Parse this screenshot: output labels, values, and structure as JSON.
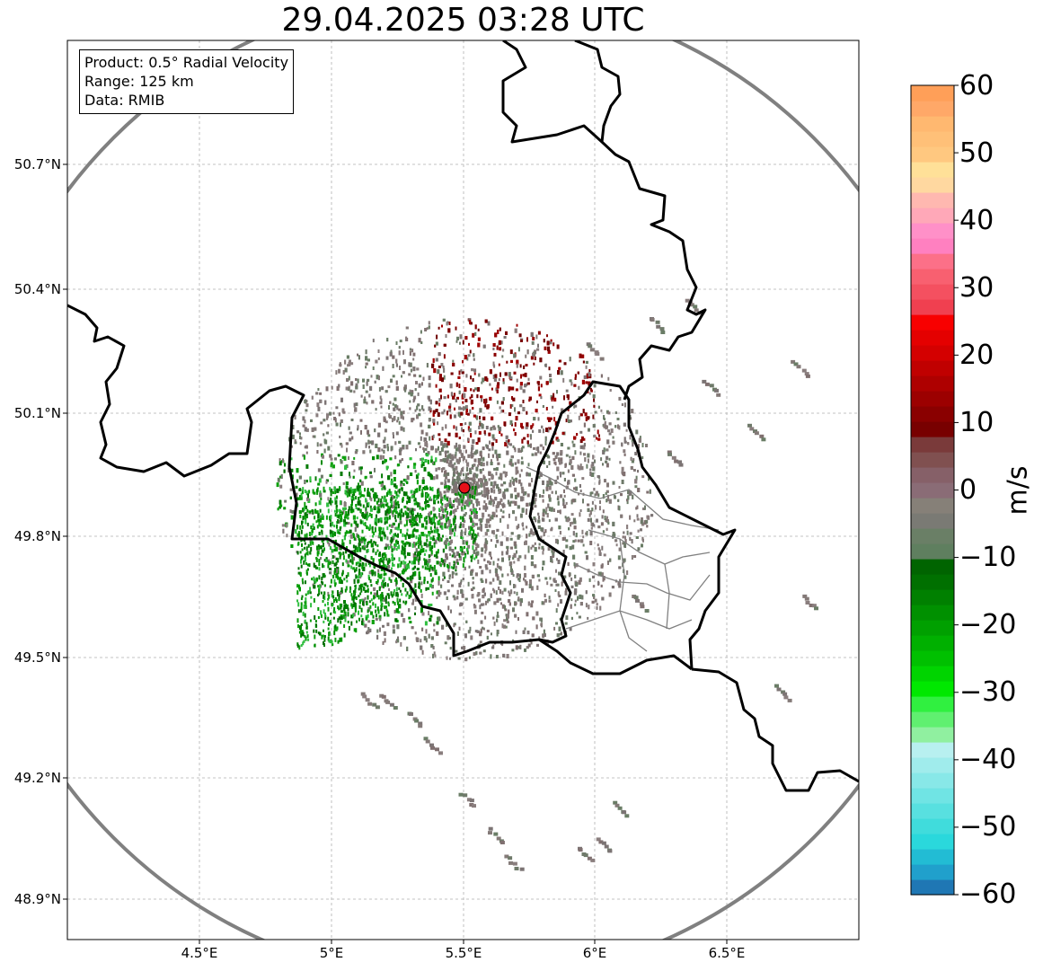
{
  "title": "29.04.2025 03:28 UTC",
  "info": {
    "product": "Product: 0.5° Radial Velocity",
    "range": "Range: 125 km",
    "data": "Data: RMIB"
  },
  "map": {
    "lon_range": [
      4.0,
      7.0
    ],
    "lat_range": [
      48.8,
      51.0
    ],
    "radar_site": {
      "lon": 5.5,
      "lat": 49.915,
      "color": "#e8101a"
    },
    "lat_ticks": [
      "50.7°N",
      "50.4°N",
      "50.1°N",
      "49.8°N",
      "49.5°N",
      "49.2°N",
      "48.9°N"
    ],
    "lon_ticks": [
      "4.5°E",
      "5°E",
      "5.5°E",
      "6°E",
      "6.5°E"
    ],
    "range_ring_color": "#808080"
  },
  "colorbar": {
    "unit": "m/s",
    "vmin": -60,
    "vmax": 60,
    "tick_labels": [
      "60",
      "50",
      "40",
      "30",
      "20",
      "10",
      "0",
      "−10",
      "−20",
      "−30",
      "−40",
      "−50",
      "−60"
    ],
    "colors_low_to_high": [
      "#1f77b4",
      "#20a0cc",
      "#22bcd4",
      "#2ad8dc",
      "#40dcdc",
      "#58e0e0",
      "#70e4e4",
      "#88e8e8",
      "#a0ecec",
      "#b8f0f0",
      "#90f0a0",
      "#60f070",
      "#30f040",
      "#00e800",
      "#00d400",
      "#00c000",
      "#00b000",
      "#00a000",
      "#009000",
      "#008000",
      "#007000",
      "#006400",
      "#5f7f5f",
      "#6a7f66",
      "#7a7a74",
      "#868078",
      "#8a6c76",
      "#866068",
      "#805050",
      "#7a3a3a",
      "#780000",
      "#8a0000",
      "#9c0000",
      "#ae0000",
      "#c00000",
      "#d40000",
      "#e40000",
      "#f80000",
      "#f04050",
      "#f45060",
      "#f86070",
      "#fc7088",
      "#ff80c0",
      "#ff90c8",
      "#ffa8b8",
      "#ffb8b0",
      "#ffd8a0",
      "#ffe098",
      "#ffc880",
      "#ffc078",
      "#ffb870",
      "#ffa868",
      "#ff9f58"
    ]
  }
}
